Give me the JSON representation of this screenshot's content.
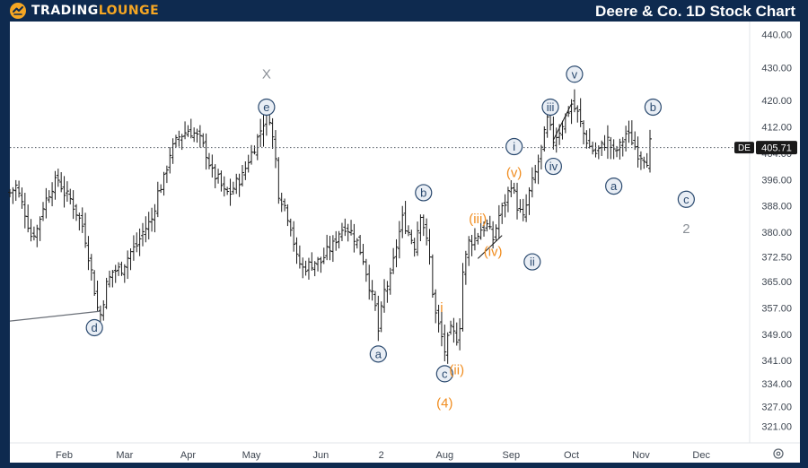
{
  "header": {
    "brand_part1": "TRADING",
    "brand_part2": "LOUNGE",
    "title": "Deere & Co. 1D Stock Chart"
  },
  "colors": {
    "frame": "#0e2a4f",
    "plot_background": "#ffffff",
    "bars": "#1a1a1a",
    "wave_label_primary": "#2b4a6f",
    "wave_label_secondary": "#f08c1e",
    "wave_label_faint": "#8a8f96",
    "price_badge": "#1a1a1a",
    "accent": "#f5a623"
  },
  "icons": {
    "logo": "tradinglounge-logo-icon",
    "settings": "gear-icon"
  },
  "chart_data": {
    "type": "ohlc",
    "symbol": "DE",
    "last_price": "405.71",
    "y_axis": {
      "min": 316,
      "max": 444,
      "ticks": [
        "321.00",
        "327.00",
        "334.00",
        "341.00",
        "349.00",
        "357.00",
        "365.00",
        "372.50",
        "380.00",
        "388.00",
        "396.00",
        "404.00",
        "412.00",
        "420.00",
        "430.00",
        "440.00"
      ],
      "tick_values": [
        321,
        327,
        334,
        341,
        349,
        357,
        365,
        372.5,
        380,
        388,
        396,
        404,
        412,
        420,
        430,
        440
      ]
    },
    "x_axis": {
      "labels": [
        {
          "text": "Feb",
          "day": 29
        },
        {
          "text": "Mar",
          "day": 49
        },
        {
          "text": "Apr",
          "day": 70
        },
        {
          "text": "May",
          "day": 91
        },
        {
          "text": "Jun",
          "day": 114
        },
        {
          "text": "2",
          "day": 134
        },
        {
          "text": "Aug",
          "day": 155
        },
        {
          "text": "Sep",
          "day": 177
        },
        {
          "text": "Oct",
          "day": 197
        },
        {
          "text": "Nov",
          "day": 220
        },
        {
          "text": "Dec",
          "day": 240
        }
      ],
      "day_range": [
        11,
        256
      ]
    },
    "price_line": 405.71,
    "anchors": [
      [
        11,
        392
      ],
      [
        13,
        394
      ],
      [
        16,
        386
      ],
      [
        18,
        379
      ],
      [
        20,
        381
      ],
      [
        22,
        388
      ],
      [
        25,
        394
      ],
      [
        27,
        396
      ],
      [
        29,
        392
      ],
      [
        31,
        390
      ],
      [
        33,
        386
      ],
      [
        35,
        382
      ],
      [
        36,
        378
      ],
      [
        38,
        368
      ],
      [
        40,
        357
      ],
      [
        41,
        355
      ],
      [
        43,
        364
      ],
      [
        45,
        368
      ],
      [
        48,
        369
      ],
      [
        51,
        374
      ],
      [
        53,
        376
      ],
      [
        55,
        380
      ],
      [
        58,
        384
      ],
      [
        60,
        392
      ],
      [
        62,
        396
      ],
      [
        64,
        404
      ],
      [
        67,
        409
      ],
      [
        70,
        411
      ],
      [
        72,
        410
      ],
      [
        74,
        408
      ],
      [
        76,
        404
      ],
      [
        78,
        398
      ],
      [
        80,
        396
      ],
      [
        82,
        392
      ],
      [
        84,
        392
      ],
      [
        86,
        395
      ],
      [
        88,
        397
      ],
      [
        90,
        402
      ],
      [
        92,
        406
      ],
      [
        94,
        411
      ],
      [
        96,
        416
      ],
      [
        97,
        415
      ],
      [
        99,
        402
      ],
      [
        100,
        392
      ],
      [
        102,
        388
      ],
      [
        104,
        382
      ],
      [
        106,
        372
      ],
      [
        108,
        369
      ],
      [
        110,
        370
      ],
      [
        112,
        371
      ],
      [
        114,
        371
      ],
      [
        116,
        374
      ],
      [
        118,
        376
      ],
      [
        120,
        380
      ],
      [
        122,
        382
      ],
      [
        124,
        380
      ],
      [
        126,
        377
      ],
      [
        128,
        372
      ],
      [
        130,
        364
      ],
      [
        132,
        357
      ],
      [
        133,
        350
      ],
      [
        135,
        362
      ],
      [
        137,
        366
      ],
      [
        139,
        376
      ],
      [
        141,
        384
      ],
      [
        143,
        380
      ],
      [
        145,
        376
      ],
      [
        147,
        386
      ],
      [
        148,
        382
      ],
      [
        150,
        372
      ],
      [
        151,
        362
      ],
      [
        152,
        355
      ],
      [
        154,
        348
      ],
      [
        155,
        344
      ],
      [
        157,
        350
      ],
      [
        159,
        348
      ],
      [
        160,
        352
      ],
      [
        161,
        368
      ],
      [
        163,
        377
      ],
      [
        165,
        378
      ],
      [
        167,
        381
      ],
      [
        169,
        382
      ],
      [
        171,
        378
      ],
      [
        173,
        385
      ],
      [
        175,
        389
      ],
      [
        177,
        395
      ],
      [
        179,
        388
      ],
      [
        181,
        384
      ],
      [
        183,
        392
      ],
      [
        185,
        398
      ],
      [
        187,
        405
      ],
      [
        189,
        414
      ],
      [
        191,
        408
      ],
      [
        193,
        411
      ],
      [
        195,
        415
      ],
      [
        197,
        419
      ],
      [
        199,
        416
      ],
      [
        201,
        410
      ],
      [
        203,
        406
      ],
      [
        205,
        404
      ],
      [
        207,
        406
      ],
      [
        209,
        408
      ],
      [
        211,
        404
      ],
      [
        213,
        406
      ],
      [
        215,
        410
      ],
      [
        217,
        408
      ],
      [
        219,
        404
      ],
      [
        221,
        403
      ],
      [
        222,
        402
      ],
      [
        223,
        407
      ]
    ],
    "wave_labels": [
      {
        "text": "d",
        "circled": true,
        "tone": "primary",
        "day": 39,
        "price": 351
      },
      {
        "text": "X",
        "circled": false,
        "tone": "faint",
        "day": 96,
        "price": 428
      },
      {
        "text": "e",
        "circled": true,
        "tone": "primary",
        "day": 96,
        "price": 418
      },
      {
        "text": "a",
        "circled": true,
        "tone": "primary",
        "day": 133,
        "price": 343
      },
      {
        "text": "b",
        "circled": true,
        "tone": "primary",
        "day": 148,
        "price": 392
      },
      {
        "text": "i",
        "circled": false,
        "tone": "secondary",
        "day": 154,
        "price": 357
      },
      {
        "text": "c",
        "circled": true,
        "tone": "primary",
        "day": 155,
        "price": 337
      },
      {
        "text": "(ii)",
        "circled": false,
        "tone": "secondary",
        "day": 159,
        "price": 338
      },
      {
        "text": "(4)",
        "circled": false,
        "tone": "secondary",
        "day": 155,
        "price": 328
      },
      {
        "text": "(iii)",
        "circled": false,
        "tone": "secondary",
        "day": 166,
        "price": 384
      },
      {
        "text": "(iv)",
        "circled": false,
        "tone": "secondary",
        "day": 171,
        "price": 374
      },
      {
        "text": "(v)",
        "circled": false,
        "tone": "secondary",
        "day": 178,
        "price": 398
      },
      {
        "text": "i",
        "circled": true,
        "tone": "primary",
        "day": 178,
        "price": 406
      },
      {
        "text": "ii",
        "circled": true,
        "tone": "primary",
        "day": 184,
        "price": 371
      },
      {
        "text": "iii",
        "circled": true,
        "tone": "primary",
        "day": 190,
        "price": 418
      },
      {
        "text": "iv",
        "circled": true,
        "tone": "primary",
        "day": 191,
        "price": 400
      },
      {
        "text": "v",
        "circled": true,
        "tone": "primary",
        "day": 198,
        "price": 428
      },
      {
        "text": "a",
        "circled": true,
        "tone": "primary",
        "day": 211,
        "price": 394
      },
      {
        "text": "b",
        "circled": true,
        "tone": "primary",
        "day": 224,
        "price": 418
      },
      {
        "text": "c",
        "circled": true,
        "tone": "primary",
        "day": 235,
        "price": 390
      },
      {
        "text": "2",
        "circled": false,
        "tone": "faint",
        "day": 235,
        "price": 381
      }
    ]
  }
}
